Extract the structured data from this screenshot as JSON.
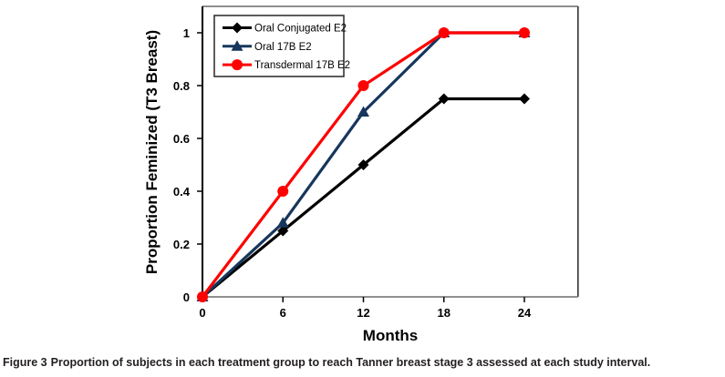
{
  "figure": {
    "caption_label": "Figure 3",
    "caption_text": "Proportion of subjects in each treatment group to reach Tanner breast stage 3 assessed at each study interval."
  },
  "chart_data": {
    "type": "line",
    "title": "",
    "xlabel": "Months",
    "ylabel": "Proportion Feminized (T3 Breast)",
    "x": [
      0,
      6,
      12,
      18,
      24
    ],
    "series": [
      {
        "name": "Oral Conjugated E2",
        "color": "#000000",
        "marker": "diamond",
        "values": [
          0,
          0.25,
          0.5,
          0.75,
          0.75
        ]
      },
      {
        "name": "Oral 17B E2",
        "color": "#17365D",
        "marker": "triangle",
        "values": [
          0,
          0.28,
          0.7,
          1,
          1
        ]
      },
      {
        "name": "Transdermal 17B E2",
        "color": "#FF0000",
        "marker": "circle",
        "values": [
          0,
          0.4,
          0.8,
          1,
          1
        ]
      }
    ],
    "x_ticks": [
      0,
      6,
      12,
      18,
      24
    ],
    "x_tick_labels": [
      "0",
      "6",
      "12",
      "18",
      "24"
    ],
    "y_ticks": [
      0,
      0.2,
      0.4,
      0.6,
      0.8,
      1
    ],
    "y_tick_labels": [
      "0",
      "0.2",
      "0.4",
      "0.6",
      "0.8",
      "1"
    ],
    "xlim": [
      0,
      28
    ],
    "ylim": [
      0,
      1.1
    ],
    "grid": false,
    "legend_position": "top-left-inside",
    "colors": {
      "y_axis": "#000000",
      "x_axis": "#7f7f7f",
      "plot_border_top": "#7f7f7f",
      "plot_border_right": "#262626",
      "tick": "#000000",
      "legend_border": "#262626",
      "legend_background": "#ffffff",
      "text": "#000000"
    }
  }
}
